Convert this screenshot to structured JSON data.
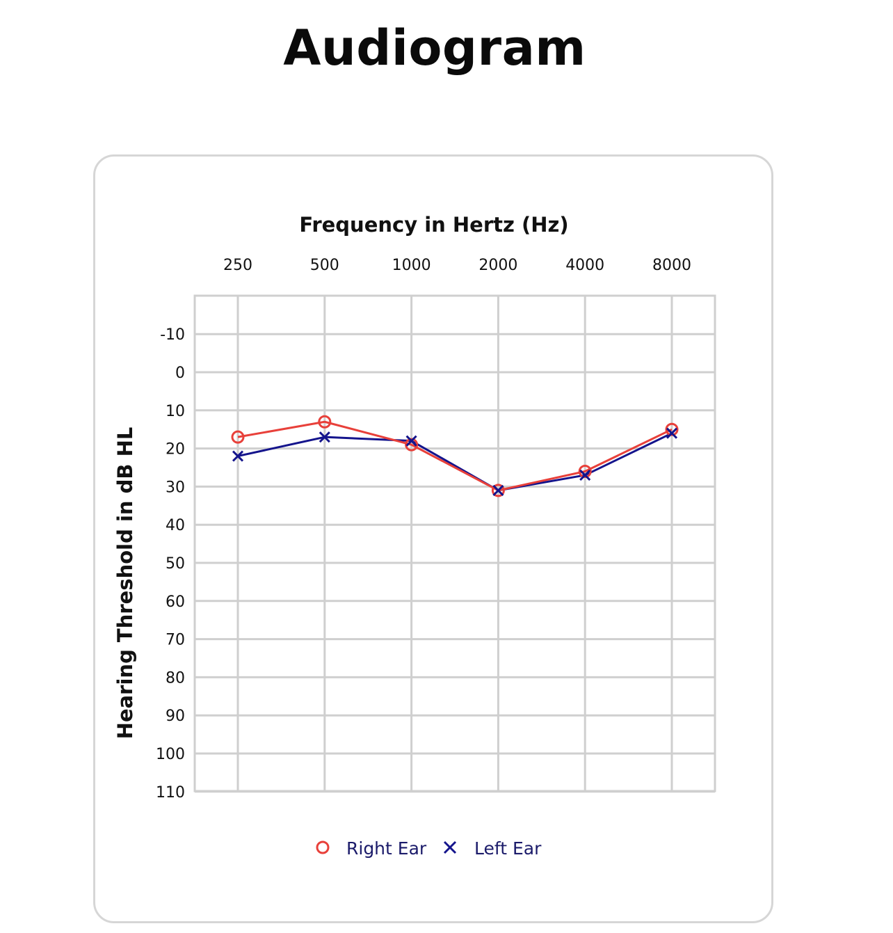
{
  "page": {
    "title": "Audiogram"
  },
  "colors": {
    "right_ear": "#e8403a",
    "left_ear": "#14148c",
    "grid": "#cfcfcf",
    "legend_text": "#1b1b6a",
    "text": "#111111"
  },
  "chart_data": {
    "type": "line",
    "title": "Audiogram",
    "xlabel": "Frequency in Hertz (Hz)",
    "ylabel": "Hearing Threshold in dB HL",
    "categories": [
      "250",
      "500",
      "1000",
      "2000",
      "4000",
      "8000"
    ],
    "y_ticks": [
      -10,
      0,
      10,
      20,
      30,
      40,
      50,
      60,
      70,
      80,
      90,
      100,
      110
    ],
    "ylim": [
      -20,
      110
    ],
    "y_inverted": true,
    "x_axis_position": "top",
    "grid": true,
    "legend_position": "bottom-center",
    "series": [
      {
        "name": "Right Ear",
        "marker": "circle",
        "marker_glyph": "O",
        "color": "#e8403a",
        "values": [
          17,
          13,
          19,
          31,
          26,
          15
        ]
      },
      {
        "name": "Left Ear",
        "marker": "cross",
        "marker_glyph": "X",
        "color": "#14148c",
        "values": [
          22,
          17,
          18,
          31,
          27,
          16
        ]
      }
    ]
  }
}
